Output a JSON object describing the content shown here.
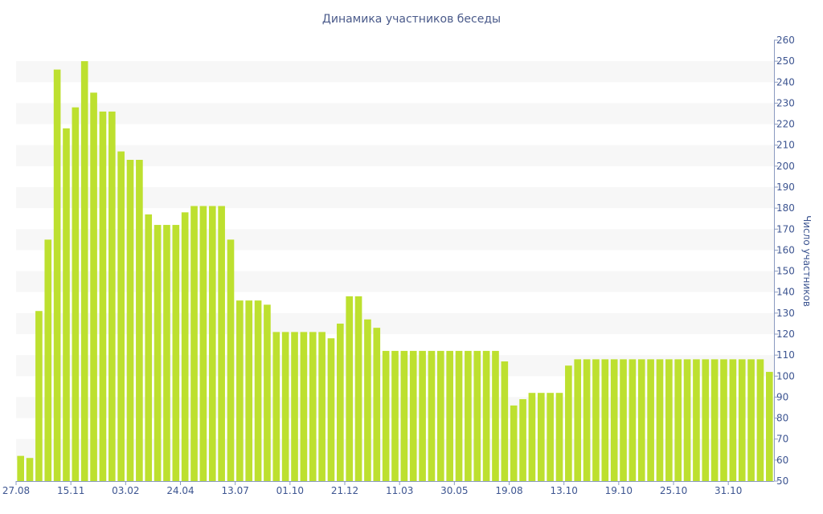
{
  "chart_data": {
    "type": "bar",
    "title": "Динамика участников беседы",
    "ylabel": "Число участников",
    "xlabel": "",
    "ylim": [
      50,
      260
    ],
    "y_ticks": [
      50,
      60,
      70,
      80,
      90,
      100,
      110,
      120,
      130,
      140,
      150,
      160,
      170,
      180,
      190,
      200,
      210,
      220,
      230,
      240,
      250,
      260
    ],
    "y_axis_position": "right",
    "x_tick_labels": [
      {
        "index": 0,
        "label": "27.08"
      },
      {
        "index": 6,
        "label": "15.11"
      },
      {
        "index": 12,
        "label": "03.02"
      },
      {
        "index": 18,
        "label": "24.04"
      },
      {
        "index": 24,
        "label": "13.07"
      },
      {
        "index": 30,
        "label": "01.10"
      },
      {
        "index": 36,
        "label": "21.12"
      },
      {
        "index": 42,
        "label": "11.03"
      },
      {
        "index": 48,
        "label": "30.05"
      },
      {
        "index": 54,
        "label": "19.08"
      },
      {
        "index": 60,
        "label": "13.10"
      },
      {
        "index": 66,
        "label": "19.10"
      },
      {
        "index": 72,
        "label": "25.10"
      },
      {
        "index": 78,
        "label": "31.10"
      }
    ],
    "values": [
      62,
      61,
      131,
      165,
      246,
      218,
      228,
      250,
      235,
      226,
      226,
      207,
      203,
      203,
      177,
      172,
      172,
      172,
      178,
      181,
      181,
      181,
      181,
      165,
      136,
      136,
      136,
      134,
      121,
      121,
      121,
      121,
      121,
      121,
      118,
      125,
      138,
      138,
      127,
      123,
      112,
      112,
      112,
      112,
      112,
      112,
      112,
      112,
      112,
      112,
      112,
      112,
      112,
      107,
      86,
      89,
      92,
      92,
      92,
      92,
      105,
      108,
      108,
      108,
      108,
      108,
      108,
      108,
      108,
      108,
      108,
      108,
      108,
      108,
      108,
      108,
      108,
      108,
      108,
      108,
      108,
      108,
      102
    ],
    "grid": "alternating horizontal bands",
    "colors": {
      "bar": "#bde02f",
      "band": "#f7f7f7",
      "text": "#3d5591",
      "axis": "#8a9ac0"
    }
  }
}
